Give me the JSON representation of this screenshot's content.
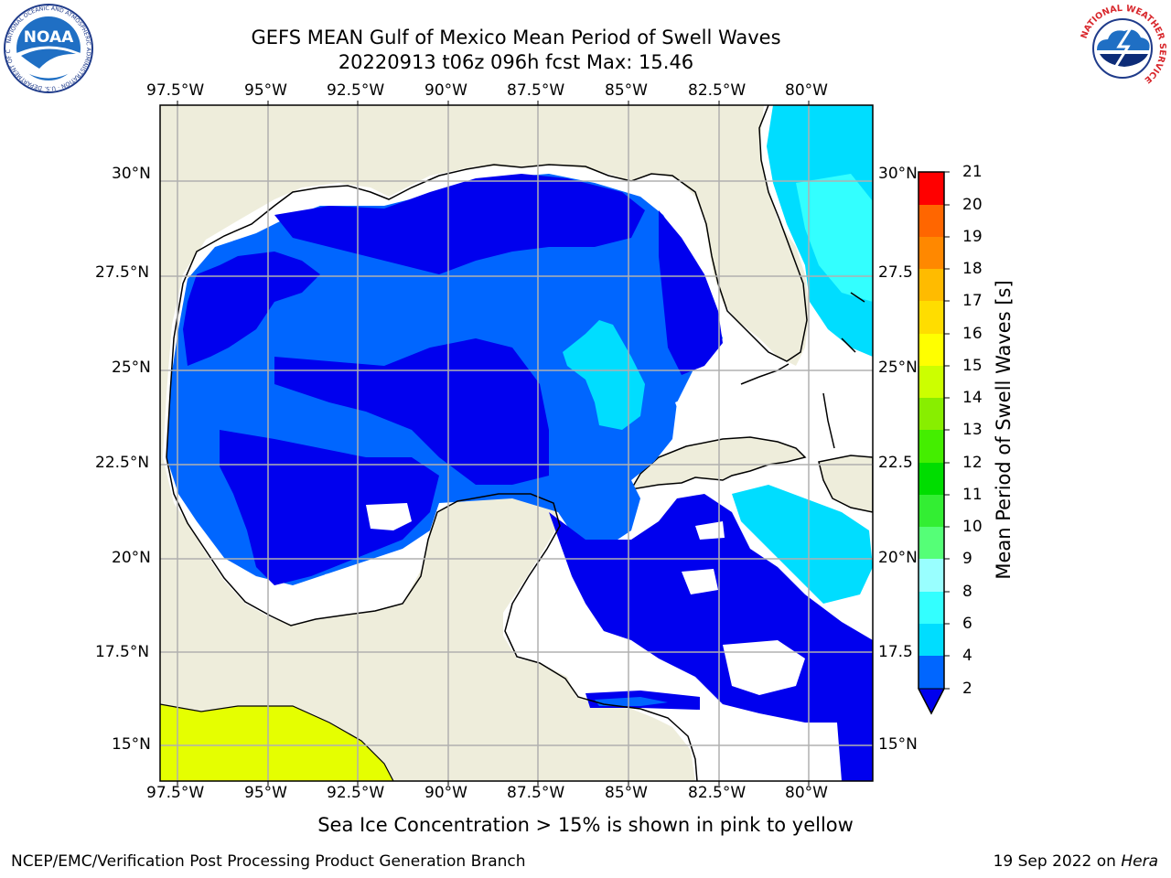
{
  "title": {
    "line1": "GEFS MEAN Gulf of Mexico Mean Period of Swell Waves",
    "line2": "20220913 t06z 096h fcst   Max: 15.46"
  },
  "map": {
    "lon_labels": [
      "97.5°W",
      "95°W",
      "92.5°W",
      "90°W",
      "87.5°W",
      "85°W",
      "82.5°W",
      "80°W"
    ],
    "lon_values": [
      -97.5,
      -95,
      -92.5,
      -90,
      -87.5,
      -85,
      -82.5,
      -80
    ],
    "lat_labels_left": [
      "30°N",
      "27.5°N",
      "25°N",
      "22.5°N",
      "20°N",
      "17.5°N",
      "15°N"
    ],
    "lat_labels_right": [
      "30°N",
      "27.5",
      "25°N",
      "22.5",
      "20°N",
      "17.5",
      "15°N"
    ],
    "lat_values": [
      30,
      27.5,
      25,
      22.5,
      20,
      17.5,
      15
    ],
    "lon_range": [
      -98,
      -78.2
    ],
    "lat_range": [
      14,
      31.8
    ],
    "grid": true,
    "colors": {
      "land": "#eeeddb",
      "no_swell": "#ffffff",
      "sea_ice": "#e5ff00",
      "grid": "#b0b0b0"
    }
  },
  "colorbar": {
    "title": "Mean Period of Swell Waves [s]",
    "ticks": [
      "2",
      "4",
      "6",
      "8",
      "9",
      "10",
      "11",
      "12",
      "13",
      "14",
      "15",
      "16",
      "17",
      "18",
      "19",
      "20",
      "21"
    ],
    "colors": [
      "#0066ff",
      "#00ddff",
      "#33ffff",
      "#99ffff",
      "#55ff77",
      "#33ee33",
      "#00dd00",
      "#44ee00",
      "#88ee00",
      "#ccff00",
      "#ffff00",
      "#ffdd00",
      "#ffbb00",
      "#ff8800",
      "#ff6600",
      "#ff3300",
      "#ff0000"
    ],
    "extend_color": "#0000ee"
  },
  "notes": {
    "sea_ice": "Sea Ice Concentration > 15% is shown in pink to yellow"
  },
  "footer": {
    "left": "NCEP/EMC/Verification Post Processing Product Generation Branch",
    "date": "19 Sep 2022 on ",
    "machine": "Hera"
  },
  "logos": {
    "left": "NOAA",
    "left_ring": "NATIONAL OCEANIC AND ATMOSPHERIC ADMINISTRATION · U.S. DEPARTMENT OF COMMERCE",
    "right_ring": "NATIONAL WEATHER SERVICE"
  }
}
